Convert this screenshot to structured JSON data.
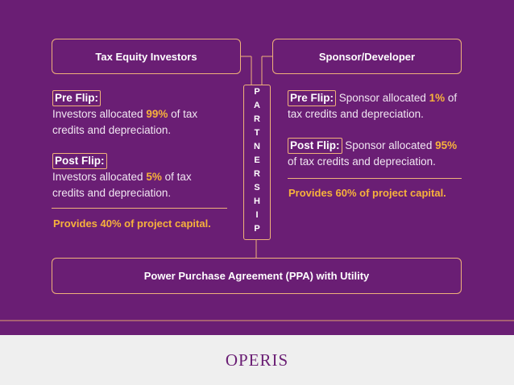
{
  "left": {
    "title": "Tax Equity Investors",
    "pre": {
      "label": "Pre Flip:",
      "before": "Investors allocated ",
      "highlight": "99%",
      "after": " of tax credits and depreciation."
    },
    "post": {
      "label": "Post Flip:",
      "before": "Investors allocated ",
      "highlight": "5%",
      "after": " of tax credits and depreciation."
    },
    "capital": "Provides 40% of project capital."
  },
  "right": {
    "title": "Sponsor/Developer",
    "pre": {
      "label": "Pre Flip:",
      "before": " Sponsor allocated ",
      "highlight": "1%",
      "after": " of tax credits and depreciation."
    },
    "post": {
      "label": "Post Flip:",
      "before": " Sponsor allocated ",
      "highlight": "95%",
      "after": " of tax credits and depreciation."
    },
    "capital": "Provides 60% of project capital."
  },
  "center": "PARTNERSHIP",
  "bottom": "Power Purchase Agreement (PPA) with Utility",
  "logo": "OPERIS"
}
